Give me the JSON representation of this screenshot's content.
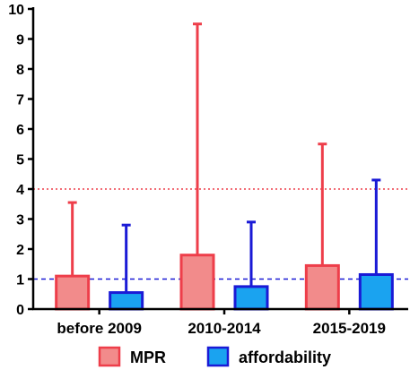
{
  "chart_data": {
    "type": "bar",
    "categories": [
      "before 2009",
      "2010-2014",
      "2015-2019"
    ],
    "series": [
      {
        "name": "MPR",
        "values": [
          1.1,
          1.8,
          1.45
        ],
        "error_upper": [
          3.55,
          9.5,
          5.5
        ],
        "fill": "#f28b8b",
        "stroke": "#ee3e4a"
      },
      {
        "name": "affordability",
        "values": [
          0.55,
          0.75,
          1.15
        ],
        "error_upper": [
          2.8,
          2.9,
          4.3
        ],
        "fill": "#1aa3f0",
        "stroke": "#1a1ad6"
      }
    ],
    "ylim": [
      0,
      10
    ],
    "yticks": [
      "0",
      "1",
      "2",
      "3",
      "4",
      "5",
      "6",
      "7",
      "8",
      "9",
      "10"
    ],
    "reference_lines": [
      {
        "value": 4,
        "color": "#ee3e4a",
        "style": "dotted"
      },
      {
        "value": 1,
        "color": "#1a1ad6",
        "style": "dashed"
      }
    ],
    "legend_position": "bottom",
    "grid": false
  }
}
